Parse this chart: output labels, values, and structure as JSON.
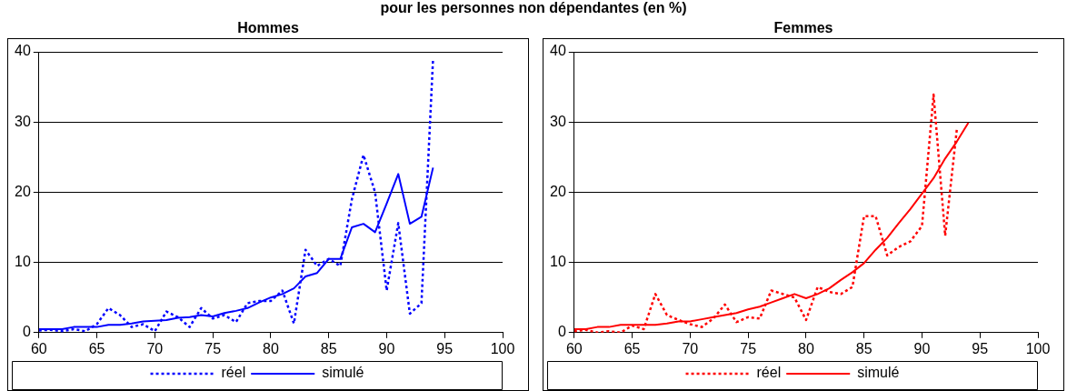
{
  "chart_data": [
    {
      "type": "line",
      "title": "pour les personnes non dépendantes (en %)",
      "subtitle": "Hommes",
      "x": [
        60,
        61,
        62,
        63,
        64,
        65,
        66,
        67,
        68,
        69,
        70,
        71,
        72,
        73,
        74,
        75,
        76,
        77,
        78,
        79,
        80,
        81,
        82,
        83,
        84,
        85,
        86,
        87,
        88,
        89,
        90,
        91,
        92,
        93,
        94
      ],
      "series": [
        {
          "name": "réel",
          "color": "#0000ff",
          "line_style": "dotted",
          "values": [
            0.3,
            0.4,
            0.2,
            0.5,
            0.2,
            1.2,
            3.5,
            2.5,
            0.8,
            1.2,
            0.2,
            3,
            2.2,
            0.8,
            3.5,
            2,
            2.5,
            1.5,
            4.2,
            4.5,
            4.5,
            6,
            1.3,
            11.8,
            9.5,
            10.5,
            9.5,
            19,
            25.3,
            20,
            6,
            15.6,
            2.7,
            4.2,
            39
          ]
        },
        {
          "name": "simulé",
          "color": "#0000ff",
          "line_style": "solid",
          "values": [
            0.5,
            0.5,
            0.5,
            0.8,
            0.8,
            0.8,
            1.1,
            1.1,
            1.3,
            1.6,
            1.7,
            1.8,
            2.1,
            2.2,
            2.5,
            2.3,
            2.8,
            3.1,
            3.5,
            4.3,
            5,
            5.5,
            6.3,
            8,
            8.5,
            10.5,
            10.5,
            15,
            15.5,
            14.3,
            18.4,
            22.6,
            15.5,
            16.5,
            23.5
          ]
        }
      ],
      "xlim": [
        60,
        100
      ],
      "xticks": [
        60,
        65,
        70,
        75,
        80,
        85,
        90,
        95,
        100
      ],
      "ylim": [
        0,
        40
      ],
      "yticks": [
        0,
        10,
        20,
        30,
        40
      ],
      "grid": "y",
      "legend": "bottom",
      "marker": "none"
    },
    {
      "type": "line",
      "title": "Femmes",
      "x": [
        60,
        61,
        62,
        63,
        64,
        65,
        66,
        67,
        68,
        69,
        70,
        71,
        72,
        73,
        74,
        75,
        76,
        77,
        78,
        79,
        80,
        81,
        82,
        83,
        84,
        85,
        86,
        87,
        88,
        89,
        90,
        91,
        92,
        93,
        94
      ],
      "series": [
        {
          "name": "réel",
          "color": "#ff0000",
          "line_style": "dotted",
          "values": [
            0.2,
            0.4,
            0,
            0.2,
            0,
            1,
            0.5,
            5.5,
            2.5,
            1.8,
            1.2,
            0.8,
            2,
            4,
            1.5,
            2.2,
            2,
            6,
            5.5,
            5,
            1.8,
            6.5,
            5.8,
            5.5,
            6.5,
            16.6,
            16.6,
            11,
            12.2,
            13,
            15.2,
            33.9,
            13.8,
            28.9,
            null
          ]
        },
        {
          "name": "simulé",
          "color": "#ff0000",
          "line_style": "solid",
          "values": [
            0.5,
            0.5,
            0.8,
            0.8,
            1.1,
            1.1,
            1.1,
            1.1,
            1.3,
            1.6,
            1.6,
            1.9,
            2.2,
            2.5,
            2.8,
            3.3,
            3.7,
            4.3,
            4.9,
            5.5,
            4.9,
            5.5,
            6.3,
            7.5,
            8.6,
            9.9,
            11.8,
            13.5,
            15.6,
            17.6,
            19.8,
            22,
            24.8,
            27.2,
            29.9
          ]
        }
      ],
      "xlim": [
        60,
        100
      ],
      "xticks": [
        60,
        65,
        70,
        75,
        80,
        85,
        90,
        95,
        100
      ],
      "ylim": [
        0,
        40
      ],
      "yticks": [
        0,
        10,
        20,
        30,
        40
      ],
      "grid": "y",
      "legend": "bottom",
      "marker": "none"
    }
  ]
}
